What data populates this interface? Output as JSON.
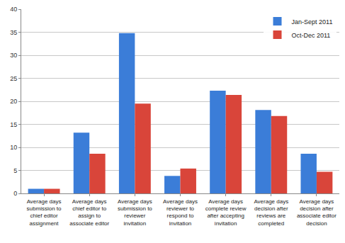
{
  "chart_data": {
    "type": "bar",
    "categories": [
      "Average days submission to chief editor assignment",
      "Average days chief editor to assign to associate editor",
      "Average days submission to reviewer invitation",
      "Average days reviewer to respond to invitation",
      "Average days complete review after accepting invitation",
      "Average days decision after reviews are completed",
      "Average days decision after associate editor decision"
    ],
    "series": [
      {
        "name": "Jan-Sept 2011",
        "color": "#3b7dd8",
        "values": [
          1.0,
          13.2,
          34.8,
          3.8,
          22.3,
          18.1,
          8.6
        ]
      },
      {
        "name": "Oct-Dec 2011",
        "color": "#d9453a",
        "values": [
          1.0,
          8.6,
          19.5,
          5.4,
          21.4,
          16.8,
          4.7
        ]
      }
    ],
    "ylim": [
      0,
      40
    ],
    "yticks": [
      0,
      5,
      10,
      15,
      20,
      25,
      30,
      35,
      40
    ],
    "grid": true,
    "legend": "upper right"
  }
}
